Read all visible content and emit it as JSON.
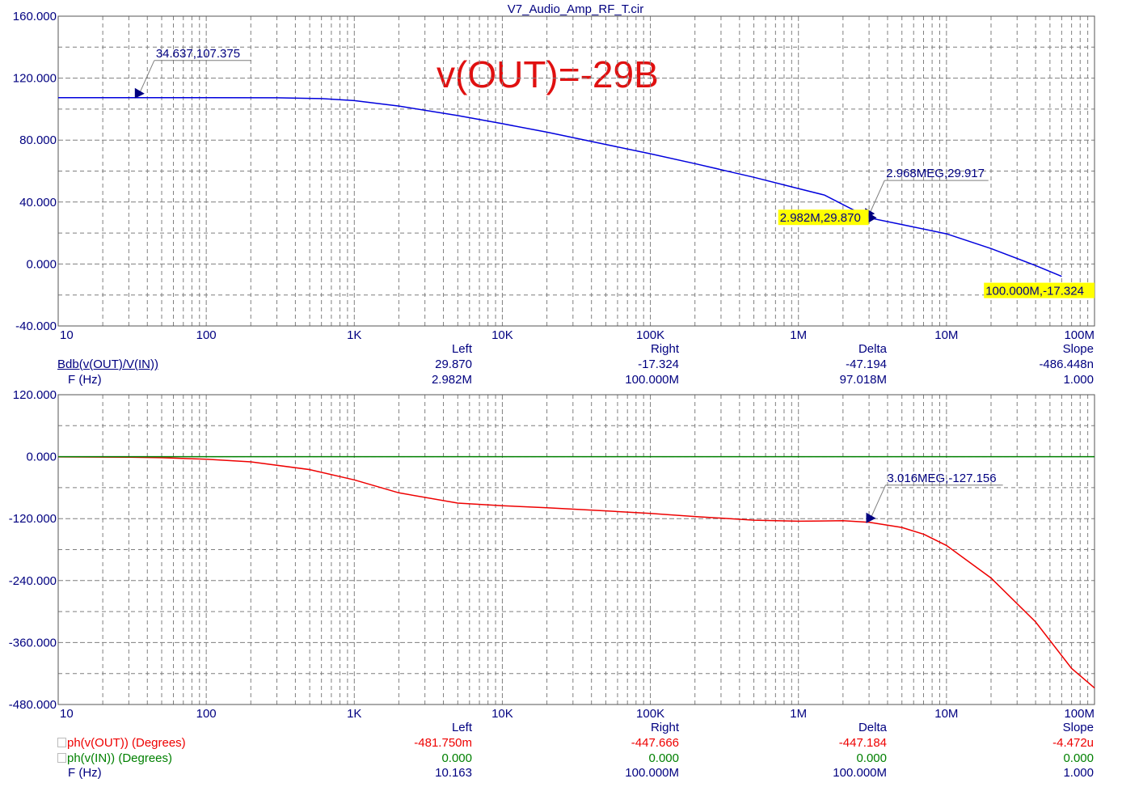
{
  "title": "V7_Audio_Amp_RF_T.cir",
  "annotation": "v(OUT)=-29B",
  "colors": {
    "axis_text": "#000080",
    "grid": "#7f7f7f",
    "gain": "#0000dd",
    "phase_out": "#ee0000",
    "phase_in": "#008000",
    "annotation": "#e01010",
    "highlight": "#ffff00"
  },
  "chart_data": [
    {
      "type": "line",
      "xscale": "log",
      "xlim": [
        10,
        100000000
      ],
      "ylim": [
        -40,
        160
      ],
      "x_ticks": [
        "10",
        "100",
        "1K",
        "10K",
        "100K",
        "1M",
        "10M",
        "100M"
      ],
      "y_ticks": [
        "160.000",
        "120.000",
        "80.000",
        "40.000",
        "0.000",
        "-40.000"
      ],
      "grid": true,
      "series": [
        {
          "name": "db(v(OUT)/V(IN))",
          "x": [
            10,
            100,
            300,
            600,
            1000,
            2000,
            5000,
            10000,
            20000,
            50000,
            100000,
            200000,
            500000,
            1000000,
            1500000,
            2982000,
            5000000,
            10000000,
            20000000,
            40000000,
            60000000
          ],
          "y": [
            107.4,
            107.4,
            107.3,
            106.8,
            105.5,
            102,
            95.8,
            90.6,
            85.1,
            77.2,
            71.2,
            64.8,
            56,
            48.7,
            44.5,
            29.87,
            25.5,
            19.5,
            10,
            -1,
            -8
          ]
        }
      ],
      "annotations": [
        {
          "text": "34.637,107.375",
          "x": 34.637,
          "y": 107.375
        },
        {
          "text": "2.968MEG,29.917",
          "x": 2968000,
          "y": 29.917
        },
        {
          "text": "2.982M,29.870",
          "x": 2982000,
          "y": 29.87,
          "highlight": true
        },
        {
          "text": "100.000M,-17.324",
          "x": 100000000,
          "y": -17.324,
          "highlight": true
        }
      ]
    },
    {
      "type": "line",
      "xscale": "log",
      "xlim": [
        10,
        100000000
      ],
      "ylim": [
        -480,
        120
      ],
      "x_ticks": [
        "10",
        "100",
        "1K",
        "10K",
        "100K",
        "1M",
        "10M",
        "100M"
      ],
      "y_ticks": [
        "120.000",
        "0.000",
        "-120.000",
        "-240.000",
        "-360.000",
        "-480.000"
      ],
      "grid": true,
      "series": [
        {
          "name": "ph(v(OUT)) (Degrees)",
          "x": [
            10,
            30,
            50,
            100,
            200,
            500,
            1000,
            2000,
            5000,
            10000,
            20000,
            50000,
            100000,
            200000,
            500000,
            1000000,
            2000000,
            3016000,
            5000000,
            7000000,
            10000000,
            20000000,
            40000000,
            70000000,
            100000000
          ],
          "y": [
            -0.5,
            -1,
            -2,
            -5,
            -10,
            -25,
            -45,
            -70,
            -90,
            -95,
            -99,
            -105,
            -110,
            -116,
            -123,
            -125,
            -124,
            -127.156,
            -137,
            -150,
            -172,
            -235,
            -320,
            -410,
            -448
          ]
        },
        {
          "name": "ph(v(IN)) (Degrees)",
          "x": [
            10,
            100000000
          ],
          "y": [
            0,
            0
          ]
        }
      ],
      "annotations": [
        {
          "text": "3.016MEG,-127.156",
          "x": 3016000,
          "y": -127.156
        }
      ]
    }
  ],
  "readout_top": {
    "headers": {
      "left": "Left",
      "right": "Right",
      "delta": "Delta",
      "slope": "Slope"
    },
    "rows": [
      {
        "label": "db(v(OUT)/V(IN))",
        "prefix": "B",
        "left": "29.870",
        "right": "-17.324",
        "delta": "-47.194",
        "slope": "-486.448n"
      },
      {
        "label": "F (Hz)",
        "left": "2.982M",
        "right": "100.000M",
        "delta": "97.018M",
        "slope": "1.000"
      }
    ]
  },
  "readout_bottom": {
    "headers": {
      "left": "Left",
      "right": "Right",
      "delta": "Delta",
      "slope": "Slope"
    },
    "rows": [
      {
        "label": "ph(v(OUT)) (Degrees)",
        "left": "-481.750m",
        "right": "-447.666",
        "delta": "-447.184",
        "slope": "-4.472u"
      },
      {
        "label": "ph(v(IN)) (Degrees)",
        "left": "0.000",
        "right": "0.000",
        "delta": "0.000",
        "slope": "0.000"
      },
      {
        "label": "F (Hz)",
        "left": "10.163",
        "right": "100.000M",
        "delta": "100.000M",
        "slope": "1.000"
      }
    ]
  }
}
